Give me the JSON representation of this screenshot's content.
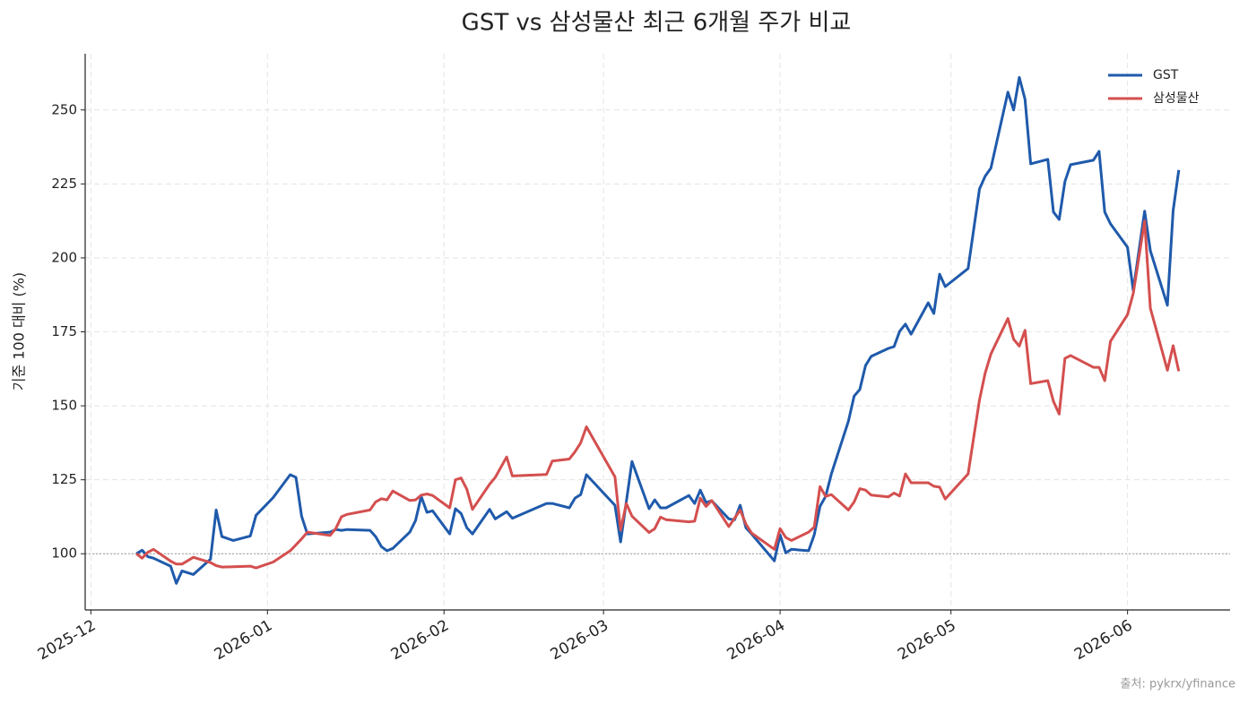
{
  "chart_data": {
    "type": "line",
    "title": "GST vs 삼성물산 최근 6개월 주가 비교",
    "y_label": "기준 100 대비 (%)",
    "source": "출처: pykrx/yfinance",
    "x": [
      "2025-12-09",
      "2025-12-10",
      "2025-12-11",
      "2025-12-12",
      "2025-12-15",
      "2025-12-16",
      "2025-12-17",
      "2025-12-19",
      "2025-12-22",
      "2025-12-23",
      "2025-12-24",
      "2025-12-26",
      "2025-12-29",
      "2025-12-30",
      "2026-01-02",
      "2026-01-05",
      "2026-01-06",
      "2026-01-07",
      "2026-01-08",
      "2026-01-12",
      "2026-01-13",
      "2026-01-14",
      "2026-01-15",
      "2026-01-19",
      "2026-01-20",
      "2026-01-21",
      "2026-01-22",
      "2026-01-23",
      "2026-01-26",
      "2026-01-27",
      "2026-01-28",
      "2026-01-29",
      "2026-01-30",
      "2026-02-02",
      "2026-02-03",
      "2026-02-04",
      "2026-02-05",
      "2026-02-06",
      "2026-02-09",
      "2026-02-10",
      "2026-02-12",
      "2026-02-13",
      "2026-02-19",
      "2026-02-20",
      "2026-02-23",
      "2026-02-24",
      "2026-02-25",
      "2026-02-26",
      "2026-03-03",
      "2026-03-04",
      "2026-03-05",
      "2026-03-06",
      "2026-03-09",
      "2026-03-10",
      "2026-03-11",
      "2026-03-12",
      "2026-03-16",
      "2026-03-17",
      "2026-03-18",
      "2026-03-19",
      "2026-03-20",
      "2026-03-23",
      "2026-03-24",
      "2026-03-25",
      "2026-03-26",
      "2026-03-27",
      "2026-03-31",
      "2026-04-01",
      "2026-04-02",
      "2026-04-03",
      "2026-04-06",
      "2026-04-07",
      "2026-04-08",
      "2026-04-09",
      "2026-04-10",
      "2026-04-13",
      "2026-04-14",
      "2026-04-15",
      "2026-04-16",
      "2026-04-17",
      "2026-04-20",
      "2026-04-21",
      "2026-04-22",
      "2026-04-23",
      "2026-04-24",
      "2026-04-27",
      "2026-04-28",
      "2026-04-29",
      "2026-04-30",
      "2026-05-04",
      "2026-05-06",
      "2026-05-07",
      "2026-05-08",
      "2026-05-11",
      "2026-05-12",
      "2026-05-13",
      "2026-05-14",
      "2026-05-15",
      "2026-05-18",
      "2026-05-19",
      "2026-05-20",
      "2026-05-21",
      "2026-05-22",
      "2026-05-26",
      "2026-05-27",
      "2026-05-28",
      "2026-05-29",
      "2026-06-01",
      "2026-06-02",
      "2026-06-04",
      "2026-06-05",
      "2026-06-08",
      "2026-06-09",
      "2026-06-10"
    ],
    "series": [
      {
        "name": "GST",
        "color": "#1f5aab",
        "values": [
          100,
          101.2,
          99,
          98.5,
          95.8,
          90,
          94.2,
          93,
          98.2,
          114.8,
          105.8,
          104.5,
          106,
          113,
          119,
          126.7,
          125.8,
          112.7,
          106.7,
          107.3,
          108.2,
          107.9,
          108.2,
          107.9,
          105.8,
          102.4,
          101,
          101.8,
          107.3,
          111.2,
          119.4,
          114,
          114.5,
          106.7,
          115.2,
          113.6,
          108.8,
          106.7,
          115,
          111.8,
          114.2,
          112,
          117,
          117,
          115.5,
          118.8,
          120,
          126.7,
          116.4,
          104,
          117.6,
          131.2,
          115.2,
          118.2,
          115.5,
          115.5,
          119.7,
          117,
          121.5,
          117.3,
          117.9,
          111.8,
          111.5,
          116.4,
          108.8,
          106.7,
          97.6,
          106.4,
          100.3,
          101.5,
          101,
          106.4,
          116,
          119.4,
          127,
          144.8,
          153.3,
          155.5,
          163.6,
          166.7,
          169.4,
          170,
          175.2,
          177.6,
          174.2,
          184.8,
          181.2,
          194.5,
          190.3,
          196.4,
          223.3,
          227.6,
          230.3,
          256,
          250,
          261,
          253.6,
          231.8,
          233.3,
          215.5,
          213,
          225.8,
          231.5,
          233,
          236,
          215.5,
          211.5,
          203.6,
          189,
          215.8,
          202.4,
          184,
          216,
          229.7
        ]
      },
      {
        "name": "삼성물산",
        "color": "#d44f4f",
        "values": [
          100,
          98.5,
          100.5,
          101.5,
          97.5,
          96.5,
          96.5,
          98.8,
          97,
          96,
          95.5,
          95.6,
          95.8,
          95.2,
          97.2,
          101,
          103,
          105,
          107.3,
          106.2,
          108.5,
          112.5,
          113.3,
          114.8,
          117.5,
          118.6,
          118.2,
          121.2,
          118,
          118.2,
          119.8,
          120.2,
          119.7,
          115.5,
          125,
          125.6,
          121.8,
          115,
          123.5,
          125.8,
          132.7,
          126.3,
          126.8,
          131.3,
          132,
          134.5,
          137.5,
          142.9,
          126,
          108,
          117,
          112.7,
          107.2,
          108.5,
          112.4,
          111.5,
          110.8,
          111,
          118.8,
          116,
          118,
          109.2,
          112,
          114.8,
          110,
          107,
          101.5,
          108.5,
          105.5,
          104.5,
          107.3,
          109,
          122.7,
          119.4,
          120,
          114.8,
          117.5,
          122,
          121.5,
          119.8,
          119.2,
          120.5,
          119.5,
          127,
          124,
          124,
          122.8,
          122.5,
          118.5,
          127,
          152,
          161,
          167.5,
          179.5,
          172.5,
          170.2,
          175.5,
          157.5,
          158.5,
          151.5,
          147.2,
          166,
          167,
          163,
          163,
          158.5,
          171.8,
          180.8,
          188,
          212.5,
          183,
          162,
          170.3,
          161.7
        ]
      }
    ],
    "reference_line": 100,
    "xlim": [
      "2025-11-30",
      "2026-06-19"
    ],
    "xticks": [
      {
        "value": "2025-12-01",
        "label": "2025-12"
      },
      {
        "value": "2026-01-01",
        "label": "2026-01"
      },
      {
        "value": "2026-02-01",
        "label": "2026-02"
      },
      {
        "value": "2026-03-01",
        "label": "2026-03"
      },
      {
        "value": "2026-04-01",
        "label": "2026-04"
      },
      {
        "value": "2026-05-01",
        "label": "2026-05"
      },
      {
        "value": "2026-06-01",
        "label": "2026-06"
      }
    ],
    "ylim": [
      81,
      269
    ],
    "yticks": [
      100,
      125,
      150,
      175,
      200,
      225,
      250
    ],
    "grid": true,
    "legend": "upper right"
  }
}
